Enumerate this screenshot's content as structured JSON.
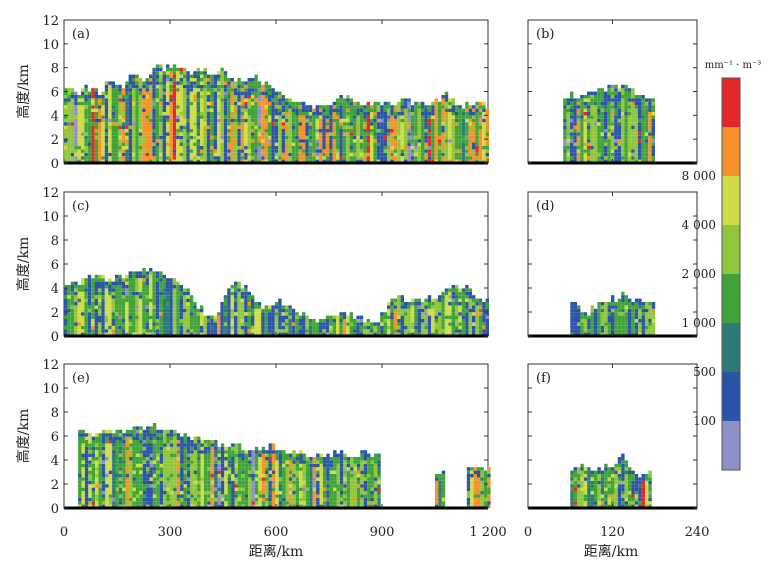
{
  "chart_data": {
    "type": "heatmap",
    "ylabel": "高度/km",
    "xlabel_left": "距离/km",
    "xlabel_right": "距离/km",
    "left_xticks": [
      0,
      300,
      600,
      900,
      1200
    ],
    "left_xtick_labels": [
      "0",
      "300",
      "600",
      "900",
      "1 200"
    ],
    "left_xlim": [
      0,
      1200
    ],
    "right_xticks": [
      0,
      120,
      240
    ],
    "right_xtick_labels": [
      "0",
      "120",
      "240"
    ],
    "right_xlim": [
      0,
      240
    ],
    "yticks": [
      0,
      2,
      4,
      6,
      8,
      10,
      12
    ],
    "ylim": [
      0,
      12
    ],
    "colorbar": {
      "unit": "mm⁻¹ · m⁻³",
      "levels": [
        {
          "label": "",
          "color": "#8f8fcc"
        },
        {
          "label": "100",
          "color": "#2b53a8"
        },
        {
          "label": "500",
          "color": "#2c7a78"
        },
        {
          "label": "1 000",
          "color": "#3fa33a"
        },
        {
          "label": "2 000",
          "color": "#8fc63c"
        },
        {
          "label": "4 000",
          "color": "#cfdc45"
        },
        {
          "label": "8 000",
          "color": "#f3932a"
        },
        {
          "label": "",
          "color": "#e4282a"
        }
      ]
    },
    "panels": [
      {
        "id": "a",
        "label": "(a)",
        "side": "left",
        "height_profile": [
          [
            0,
            6.2
          ],
          [
            20,
            6.5
          ],
          [
            40,
            5.8
          ],
          [
            60,
            6.4
          ],
          [
            80,
            6.6
          ],
          [
            100,
            6.0
          ],
          [
            120,
            6.8
          ],
          [
            140,
            7.0
          ],
          [
            160,
            6.5
          ],
          [
            180,
            7.3
          ],
          [
            200,
            7.6
          ],
          [
            220,
            7.2
          ],
          [
            240,
            7.8
          ],
          [
            260,
            8.2
          ],
          [
            280,
            8.0
          ],
          [
            300,
            8.4
          ],
          [
            320,
            8.1
          ],
          [
            340,
            7.9
          ],
          [
            360,
            7.6
          ],
          [
            380,
            8.0
          ],
          [
            400,
            7.7
          ],
          [
            420,
            7.5
          ],
          [
            440,
            8.2
          ],
          [
            460,
            7.6
          ],
          [
            480,
            7.1
          ],
          [
            500,
            6.9
          ],
          [
            520,
            7.0
          ],
          [
            540,
            7.2
          ],
          [
            560,
            6.8
          ],
          [
            580,
            6.6
          ],
          [
            600,
            6.2
          ],
          [
            620,
            5.8
          ],
          [
            640,
            5.4
          ],
          [
            660,
            5.1
          ],
          [
            680,
            5.2
          ],
          [
            700,
            5.0
          ],
          [
            720,
            4.8
          ],
          [
            740,
            4.9
          ],
          [
            760,
            5.2
          ],
          [
            780,
            5.6
          ],
          [
            800,
            5.8
          ],
          [
            820,
            5.3
          ],
          [
            840,
            5.0
          ],
          [
            860,
            5.2
          ],
          [
            880,
            5.4
          ],
          [
            900,
            5.2
          ],
          [
            920,
            5.0
          ],
          [
            940,
            5.3
          ],
          [
            960,
            5.5
          ],
          [
            980,
            5.2
          ],
          [
            1000,
            5.4
          ],
          [
            1020,
            5.0
          ],
          [
            1040,
            5.2
          ],
          [
            1060,
            5.4
          ],
          [
            1080,
            5.8
          ],
          [
            1100,
            5.3
          ],
          [
            1120,
            5.1
          ],
          [
            1140,
            5.0
          ],
          [
            1160,
            5.4
          ],
          [
            1180,
            5.2
          ],
          [
            1200,
            4.6
          ]
        ],
        "rain_start": 0,
        "rain_end": 1200,
        "intensity": "high"
      },
      {
        "id": "b",
        "label": "(b)",
        "side": "right",
        "height_profile": [
          [
            50,
            5.6
          ],
          [
            60,
            5.8
          ],
          [
            70,
            5.9
          ],
          [
            80,
            6.0
          ],
          [
            90,
            6.2
          ],
          [
            100,
            6.4
          ],
          [
            110,
            6.5
          ],
          [
            120,
            6.6
          ],
          [
            130,
            6.7
          ],
          [
            140,
            6.5
          ],
          [
            150,
            6.2
          ],
          [
            160,
            5.9
          ],
          [
            170,
            5.6
          ],
          [
            180,
            5.3
          ]
        ],
        "rain_start": 50,
        "rain_end": 180,
        "intensity": "mid"
      },
      {
        "id": "c",
        "label": "(c)",
        "side": "left",
        "height_profile": [
          [
            0,
            4.3
          ],
          [
            20,
            4.5
          ],
          [
            40,
            4.7
          ],
          [
            60,
            4.9
          ],
          [
            80,
            5.0
          ],
          [
            100,
            5.1
          ],
          [
            120,
            5.0
          ],
          [
            140,
            4.9
          ],
          [
            160,
            5.2
          ],
          [
            180,
            5.4
          ],
          [
            200,
            5.6
          ],
          [
            220,
            5.7
          ],
          [
            240,
            5.6
          ],
          [
            260,
            5.5
          ],
          [
            280,
            5.3
          ],
          [
            300,
            5.0
          ],
          [
            320,
            4.6
          ],
          [
            340,
            4.0
          ],
          [
            360,
            3.2
          ],
          [
            380,
            2.5
          ],
          [
            400,
            2.0
          ],
          [
            420,
            1.8
          ],
          [
            440,
            2.5
          ],
          [
            460,
            4.0
          ],
          [
            480,
            4.6
          ],
          [
            500,
            4.4
          ],
          [
            520,
            3.9
          ],
          [
            540,
            3.0
          ],
          [
            560,
            2.6
          ],
          [
            580,
            2.8
          ],
          [
            600,
            3.2
          ],
          [
            620,
            3.0
          ],
          [
            640,
            2.6
          ],
          [
            660,
            2.0
          ],
          [
            680,
            1.7
          ],
          [
            700,
            1.5
          ],
          [
            720,
            1.3
          ],
          [
            740,
            1.8
          ],
          [
            760,
            2.0
          ],
          [
            780,
            2.1
          ],
          [
            800,
            1.9
          ],
          [
            820,
            1.8
          ],
          [
            840,
            1.6
          ],
          [
            860,
            1.4
          ],
          [
            880,
            1.2
          ],
          [
            900,
            2.2
          ],
          [
            920,
            3.1
          ],
          [
            940,
            3.4
          ],
          [
            960,
            3.2
          ],
          [
            980,
            3.0
          ],
          [
            1000,
            3.2
          ],
          [
            1020,
            3.5
          ],
          [
            1040,
            3.3
          ],
          [
            1060,
            3.6
          ],
          [
            1080,
            4.0
          ],
          [
            1100,
            4.2
          ],
          [
            1120,
            4.3
          ],
          [
            1140,
            4.1
          ],
          [
            1160,
            3.5
          ],
          [
            1180,
            3.0
          ],
          [
            1200,
            2.9
          ]
        ],
        "rain_start": 0,
        "rain_end": 1200,
        "intensity": "low"
      },
      {
        "id": "d",
        "label": "(d)",
        "side": "right",
        "height_profile": [
          [
            60,
            3.2
          ],
          [
            70,
            2.4
          ],
          [
            80,
            2.0
          ],
          [
            90,
            2.4
          ],
          [
            100,
            2.8
          ],
          [
            110,
            3.1
          ],
          [
            120,
            3.3
          ],
          [
            130,
            3.5
          ],
          [
            140,
            3.3
          ],
          [
            150,
            3.0
          ],
          [
            160,
            3.1
          ],
          [
            170,
            3.0
          ],
          [
            180,
            2.7
          ]
        ],
        "rain_start": 60,
        "rain_end": 180,
        "intensity": "low"
      },
      {
        "id": "e",
        "label": "(e)",
        "side": "left",
        "height_profile": [
          [
            40,
            6.3
          ],
          [
            60,
            6.4
          ],
          [
            80,
            6.2
          ],
          [
            100,
            6.5
          ],
          [
            120,
            6.7
          ],
          [
            140,
            6.5
          ],
          [
            160,
            6.4
          ],
          [
            180,
            6.8
          ],
          [
            200,
            7.0
          ],
          [
            220,
            6.8
          ],
          [
            240,
            7.1
          ],
          [
            260,
            6.9
          ],
          [
            280,
            6.5
          ],
          [
            300,
            6.6
          ],
          [
            320,
            6.4
          ],
          [
            340,
            6.3
          ],
          [
            360,
            6.1
          ],
          [
            380,
            6.0
          ],
          [
            400,
            5.8
          ],
          [
            420,
            5.6
          ],
          [
            440,
            5.4
          ],
          [
            460,
            5.3
          ],
          [
            480,
            5.5
          ],
          [
            500,
            5.2
          ],
          [
            520,
            5.0
          ],
          [
            540,
            5.3
          ],
          [
            560,
            5.1
          ],
          [
            580,
            5.4
          ],
          [
            600,
            5.0
          ],
          [
            620,
            4.8
          ],
          [
            640,
            4.6
          ],
          [
            660,
            4.8
          ],
          [
            680,
            4.6
          ],
          [
            700,
            4.4
          ],
          [
            720,
            4.7
          ],
          [
            740,
            4.5
          ],
          [
            760,
            4.8
          ],
          [
            780,
            4.9
          ],
          [
            800,
            4.6
          ],
          [
            820,
            4.5
          ],
          [
            840,
            4.8
          ],
          [
            860,
            4.7
          ],
          [
            880,
            4.4
          ]
        ],
        "rain_start": 40,
        "rain_end": 890,
        "intensity": "mid",
        "extra_segments": [
          [
            1050,
            1080,
            3.0
          ],
          [
            1140,
            1200,
            3.6
          ]
        ]
      },
      {
        "id": "f",
        "label": "(f)",
        "side": "right",
        "height_profile": [
          [
            60,
            3.3
          ],
          [
            70,
            3.5
          ],
          [
            80,
            3.6
          ],
          [
            90,
            3.3
          ],
          [
            100,
            3.4
          ],
          [
            110,
            3.6
          ],
          [
            120,
            3.7
          ],
          [
            130,
            4.6
          ],
          [
            140,
            3.8
          ],
          [
            150,
            3.3
          ],
          [
            155,
            2.4
          ],
          [
            160,
            2.8
          ],
          [
            170,
            3.2
          ],
          [
            175,
            3.0
          ]
        ],
        "rain_start": 60,
        "rain_end": 176,
        "intensity": "mid"
      }
    ]
  }
}
